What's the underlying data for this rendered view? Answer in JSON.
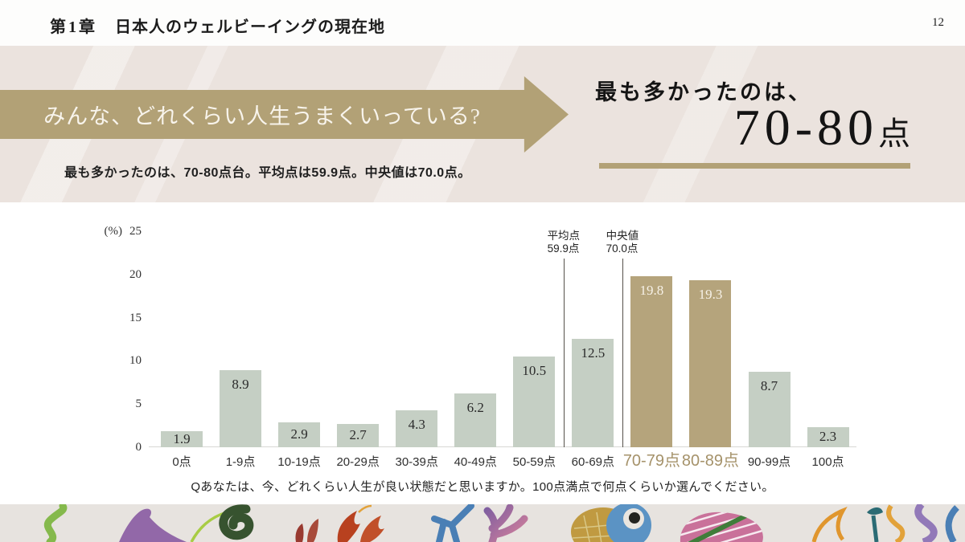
{
  "header": {
    "chapter": "第1章",
    "title": "日本人のウェルビーイングの現在地",
    "page_number": "12"
  },
  "banner": {
    "arrow_text": "みんな、どれくらい人生うまくいっている?",
    "summary": "最も多かったのは、70-80点台。平均点は59.9点。中央値は70.0点。",
    "headline_lead": "最も多かったのは、",
    "headline_value": "70-80",
    "headline_unit": "点",
    "accent_color": "#b2a176"
  },
  "chart_data": {
    "type": "bar",
    "unit_label": "(%)",
    "categories": [
      "0点",
      "1-9点",
      "10-19点",
      "20-29点",
      "30-39点",
      "40-49点",
      "50-59点",
      "60-69点",
      "70-79点",
      "80-89点",
      "90-99点",
      "100点"
    ],
    "values": [
      1.9,
      8.9,
      2.9,
      2.7,
      4.3,
      6.2,
      10.5,
      12.5,
      19.8,
      19.3,
      8.7,
      2.3
    ],
    "highlighted_categories": [
      "70-79点",
      "80-89点"
    ],
    "ylim": [
      0,
      25
    ],
    "yticks": [
      0,
      5,
      10,
      15,
      20,
      25
    ],
    "grid": false,
    "legend_position": "none",
    "bar_color": "#c5cfc4",
    "highlight_color": "#b5a47c",
    "value_label_color": "#2b2b2b",
    "highlight_value_label_color": "#f6f1e7",
    "highlight_axis_label_color": "#a5926a",
    "annotations": [
      {
        "label": "平均点",
        "value_label": "59.9点",
        "x_value": 59.9,
        "between_categories": [
          "50-59点",
          "60-69点"
        ]
      },
      {
        "label": "中央値",
        "value_label": "70.0点",
        "x_value": 70.0,
        "between_categories": [
          "60-69点",
          "70-79点"
        ]
      }
    ],
    "caption": "Qあなたは、今、どれくらい人生が良い状態だと思いますか。100点満点で何点くらいか選んでください。"
  }
}
